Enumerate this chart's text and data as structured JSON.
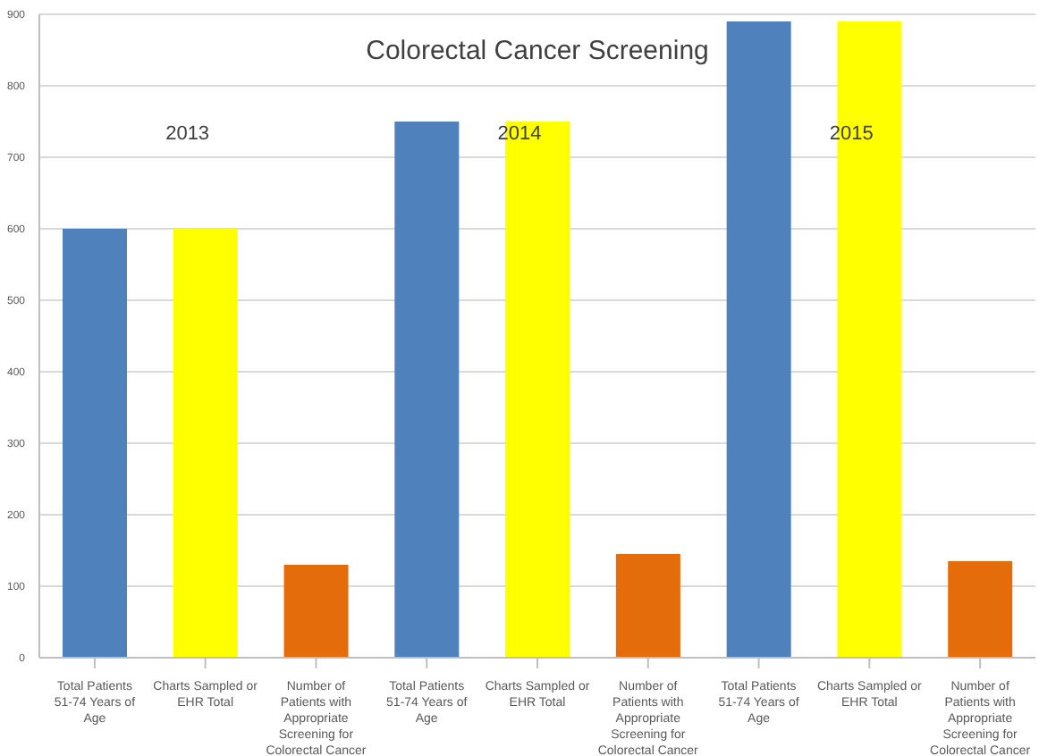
{
  "chart_data": {
    "type": "bar",
    "title": "Colorectal Cancer Screening",
    "categories": [
      "Total Patients 51-74 Years of Age",
      "Charts Sampled or EHR Total",
      "Number of Patients with Appropriate Screening for Colorectal Cancer",
      "Total Patients 51-74 Years of Age",
      "Charts Sampled or EHR Total",
      "Number of Patients with Appropriate Screening for Colorectal Cancer",
      "Total Patients 51-74 Years of Age",
      "Charts Sampled or EHR Total",
      "Number of Patients with Appropriate Screening for Colorectal Cancer"
    ],
    "values": [
      600,
      600,
      130,
      750,
      750,
      145,
      890,
      890,
      135
    ],
    "colors": [
      "#4f81bd",
      "#ffff00",
      "#e46c0a",
      "#4f81bd",
      "#ffff00",
      "#e46c0a",
      "#4f81bd",
      "#ffff00",
      "#e46c0a"
    ],
    "ylim": [
      0,
      900
    ],
    "yticks": [
      0,
      100,
      200,
      300,
      400,
      500,
      600,
      700,
      800,
      900
    ],
    "grid": "y",
    "annotations": [
      "2013",
      "2014",
      "2015"
    ]
  }
}
